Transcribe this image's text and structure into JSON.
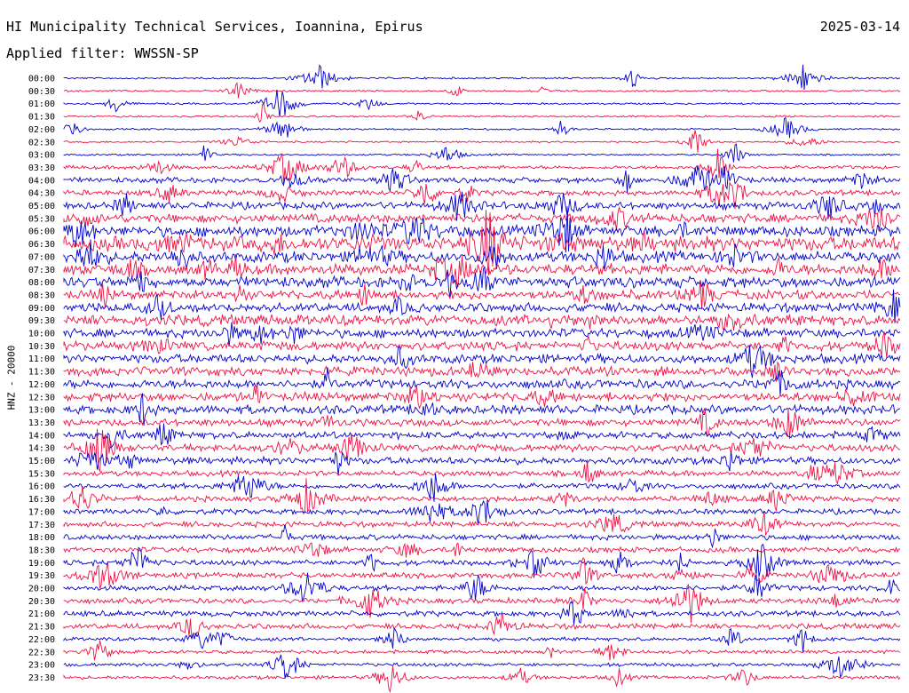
{
  "header": {
    "title": "HI Municipality Technical Services, Ioannina, Epirus",
    "date": "2025-03-14",
    "filter": "Applied filter: WWSSN-SP"
  },
  "chart_data": {
    "type": "line",
    "title": "HI Municipality Technical Services, Ioannina, Epirus",
    "subtitle": "Applied filter: WWSSN-SP",
    "date": "2025-03-14",
    "ylabel": "HNZ - 20000",
    "grid": false,
    "colors": {
      "even_rows": "#0000cc",
      "odd_rows": "#ee1144"
    },
    "row_labels": [
      "00:00",
      "00:30",
      "01:00",
      "01:30",
      "02:00",
      "02:30",
      "03:00",
      "03:30",
      "04:00",
      "04:30",
      "05:00",
      "05:30",
      "06:00",
      "06:30",
      "07:00",
      "07:30",
      "08:00",
      "08:30",
      "09:00",
      "09:30",
      "10:00",
      "10:30",
      "11:00",
      "11:30",
      "12:00",
      "12:30",
      "13:00",
      "13:30",
      "14:00",
      "14:30",
      "15:00",
      "15:30",
      "16:00",
      "16:30",
      "17:00",
      "17:30",
      "18:00",
      "18:30",
      "19:00",
      "19:30",
      "20:00",
      "20:30",
      "21:00",
      "21:30",
      "22:00",
      "22:30",
      "23:00",
      "23:30"
    ],
    "noise_level": [
      1,
      1,
      1,
      1,
      1,
      1,
      1,
      2,
      3,
      3,
      4,
      5,
      6,
      8,
      6,
      6,
      6,
      5,
      5,
      6,
      5,
      5,
      5,
      5,
      5,
      5,
      5,
      4,
      4,
      4,
      4,
      3,
      3,
      3,
      3,
      3,
      3,
      3,
      3,
      3,
      3,
      3,
      3,
      3,
      2,
      2,
      2,
      2
    ]
  }
}
